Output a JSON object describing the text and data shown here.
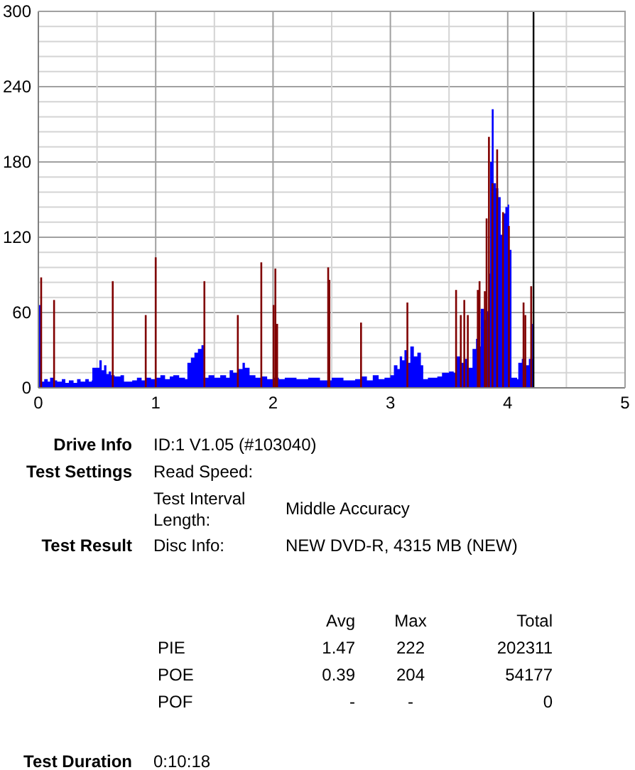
{
  "chart_data": {
    "type": "area",
    "xlim": [
      0,
      5
    ],
    "xticks": [
      0,
      {
        "value": 0.5,
        "label": null
      },
      1,
      {
        "value": 1.5,
        "label": null
      },
      2,
      {
        "value": 2.5,
        "label": null
      },
      3,
      {
        "value": 3.5,
        "label": null
      },
      4,
      {
        "value": 4.5,
        "label": null
      },
      5
    ],
    "ylim": [
      0,
      300
    ],
    "yticks": [
      0,
      {
        "value": 12,
        "label": null
      },
      {
        "value": 24,
        "label": null
      },
      {
        "value": 36,
        "label": null
      },
      {
        "value": 48,
        "label": null
      },
      60,
      {
        "value": 72,
        "label": null
      },
      {
        "value": 84,
        "label": null
      },
      {
        "value": 96,
        "label": null
      },
      {
        "value": 108,
        "label": null
      },
      120,
      {
        "value": 132,
        "label": null
      },
      {
        "value": 144,
        "label": null
      },
      {
        "value": 156,
        "label": null
      },
      {
        "value": 168,
        "label": null
      },
      180,
      {
        "value": 192,
        "label": null
      },
      {
        "value": 204,
        "label": null
      },
      {
        "value": 216,
        "label": null
      },
      {
        "value": 228,
        "label": null
      },
      240,
      {
        "value": 252,
        "label": null
      },
      {
        "value": 264,
        "label": null
      },
      {
        "value": 276,
        "label": null
      },
      {
        "value": 288,
        "label": null
      },
      300
    ],
    "grid": true,
    "series": [
      {
        "color": "#0000ff",
        "x": [
          0,
          0.02,
          0.025,
          0.05,
          0.08,
          0.1,
          0.13,
          0.16,
          0.2,
          0.23,
          0.26,
          0.3,
          0.33,
          0.36,
          0.4,
          0.43,
          0.455,
          0.46,
          0.5,
          0.52,
          0.54,
          0.56,
          0.58,
          0.6,
          0.62,
          0.65,
          0.7,
          0.73,
          0.76,
          0.8,
          0.84,
          0.88,
          0.92,
          0.96,
          1.0,
          1.04,
          1.08,
          1.12,
          1.15,
          1.2,
          1.25,
          1.27,
          1.3,
          1.33,
          1.36,
          1.39,
          1.41,
          1.45,
          1.5,
          1.55,
          1.6,
          1.63,
          1.66,
          1.7,
          1.74,
          1.76,
          1.8,
          1.85,
          1.9,
          1.95,
          2.0,
          2.05,
          2.1,
          2.2,
          2.3,
          2.4,
          2.5,
          2.6,
          2.7,
          2.75,
          2.8,
          2.85,
          2.9,
          2.95,
          3.0,
          3.03,
          3.06,
          3.08,
          3.1,
          3.12,
          3.15,
          3.17,
          3.2,
          3.23,
          3.26,
          3.28,
          3.32,
          3.4,
          3.44,
          3.5,
          3.54,
          3.56,
          3.6,
          3.63,
          3.66,
          3.7,
          3.73,
          3.75,
          3.77,
          3.8,
          3.82,
          3.84,
          3.85,
          3.864,
          3.88,
          3.9,
          3.92,
          3.94,
          3.96,
          3.98,
          4.0,
          4.012,
          4.028,
          4.032,
          4.08,
          4.09,
          4.12,
          4.145,
          4.18,
          4.2,
          4.208,
          4.22
        ],
        "values": [
          66,
          66,
          5,
          7,
          5,
          8,
          6,
          5,
          7,
          4,
          6,
          4,
          7,
          5,
          7,
          5,
          6,
          16,
          16,
          22,
          14,
          18,
          11,
          13,
          10,
          9,
          10,
          5,
          5,
          6,
          8,
          6,
          8,
          7,
          8,
          10,
          7,
          9,
          10,
          8,
          7,
          20,
          24,
          28,
          31,
          34,
          8,
          10,
          8,
          10,
          8,
          14,
          12,
          15,
          20,
          16,
          10,
          8,
          9,
          7,
          8,
          7,
          8,
          7,
          8,
          6,
          8,
          6,
          7,
          9,
          6,
          10,
          7,
          8,
          10,
          18,
          15,
          25,
          22,
          30,
          20,
          33,
          25,
          28,
          18,
          7,
          8,
          9,
          12,
          13,
          12,
          25,
          20,
          23,
          16,
          31,
          39,
          33,
          63,
          54,
          61,
          91,
          180,
          222,
          163,
          159,
          152,
          122,
          139,
          144,
          146,
          110,
          110,
          8,
          7,
          20,
          23,
          18,
          23,
          23,
          51,
          51
        ]
      },
      {
        "type": "bar",
        "color": "#800000",
        "x": [
          0.024,
          0.134,
          0.634,
          0.915,
          1.0,
          1.415,
          1.7,
          1.9,
          2.005,
          2.02,
          2.035,
          2.47,
          2.48,
          2.75,
          3.145,
          3.56,
          3.6,
          3.63,
          3.66,
          3.745,
          3.76,
          3.805,
          3.82,
          3.84,
          3.87,
          3.91,
          3.96,
          4.01,
          4.135,
          4.15,
          4.2
        ],
        "values": [
          88,
          70,
          85,
          58,
          104,
          85,
          58,
          100,
          66,
          95,
          51,
          96,
          86,
          52,
          68,
          78,
          58,
          70,
          58,
          78,
          85,
          77,
          135,
          200,
          163,
          190,
          140,
          129,
          68,
          58,
          81
        ]
      }
    ],
    "ref_lines": [
      {
        "axis": "x",
        "value": 4.22,
        "color": "#000000"
      }
    ],
    "annotations": [
      "Drive Info",
      "ID:1 V1.05 (#103040)",
      "Test Settings",
      "Read Speed:",
      "Test Interval Length:",
      "Middle Accuracy",
      "Test Result",
      "Disc Info:",
      "NEW DVD-R, 4315 MB (NEW)",
      "Avg",
      "Max",
      "Total",
      "PIE",
      "1.47",
      "222",
      "202311",
      "POE",
      "0.39",
      "204",
      "54177",
      "POF",
      "-",
      "-",
      "0",
      "Test Duration",
      "0:10:18"
    ]
  }
}
